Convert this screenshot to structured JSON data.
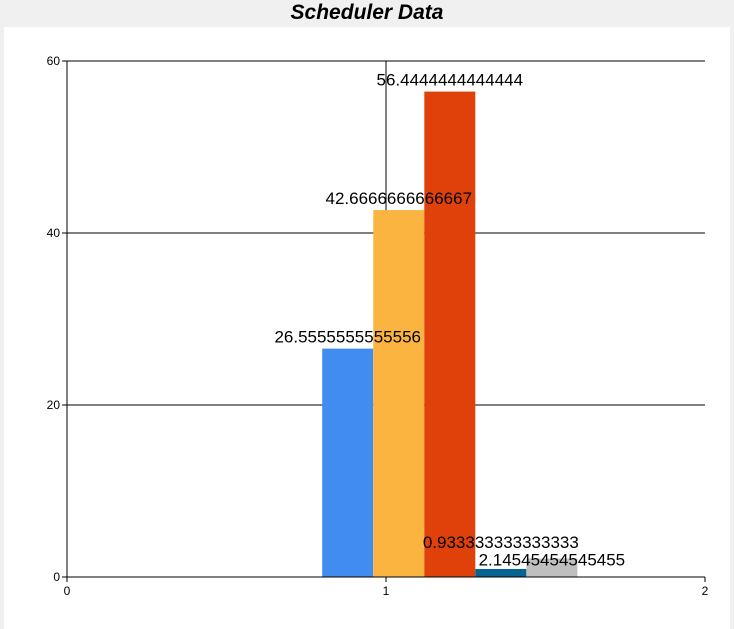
{
  "chart_data": {
    "type": "bar",
    "title": "Scheduler Data",
    "xlabel": "",
    "ylabel": "",
    "xlim": [
      0,
      2
    ],
    "ylim": [
      0,
      60
    ],
    "x_ticks": [
      "0",
      "1",
      "2"
    ],
    "y_ticks": [
      "0",
      "20",
      "40",
      "60"
    ],
    "grid": "horizontal",
    "series": [
      {
        "x": 0.88,
        "value": 26.5555555555556,
        "label": "26.5555555555556",
        "color": "#418cf0"
      },
      {
        "x": 1.04,
        "value": 42.6666666666667,
        "label": "42.6666666666667",
        "color": "#fcb441"
      },
      {
        "x": 1.2,
        "value": 56.4444444444444,
        "label": "56.4444444444444",
        "color": "#e0400a"
      },
      {
        "x": 1.36,
        "value": 0.933333333333333,
        "label": "0.933333333333333",
        "color": "#056492"
      },
      {
        "x": 1.52,
        "value": 2.14545454545455,
        "label": "2.14545454545455",
        "color": "#bfbfbf"
      }
    ]
  }
}
